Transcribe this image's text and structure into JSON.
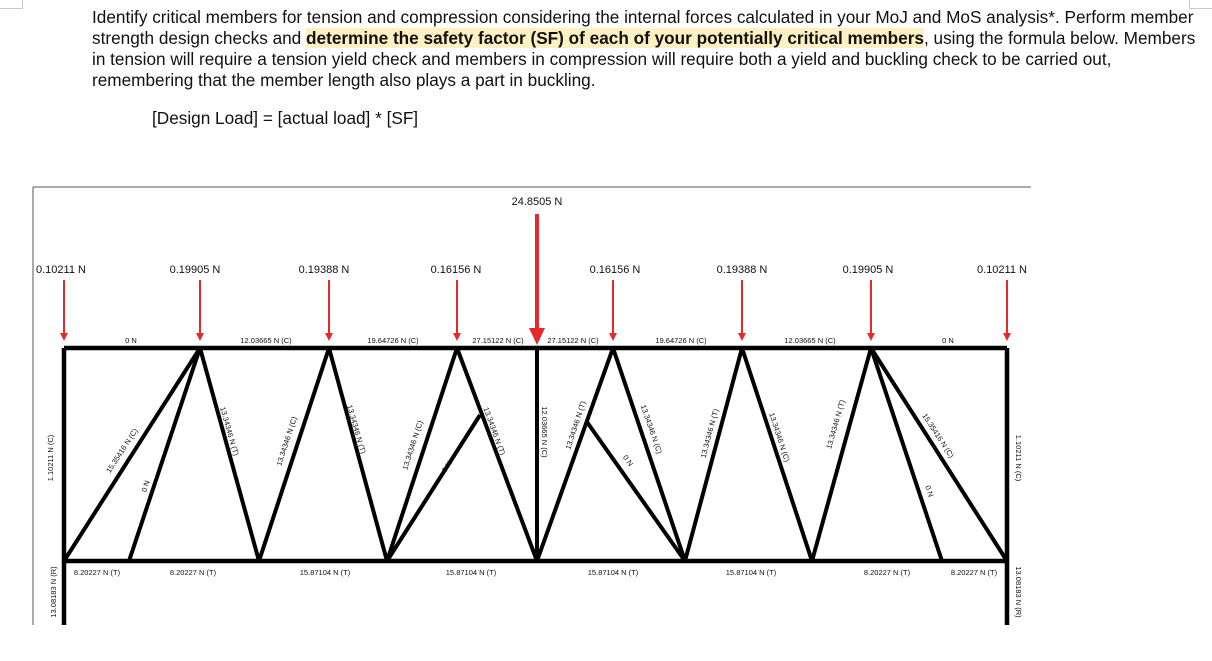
{
  "instructions": {
    "part1": "Identify critical members for tension and compression considering the internal forces calculated in your MoJ and MoS analysis*. Perform member strength design checks and ",
    "highlight": "determine the safety factor (SF) of each of your potentially critical members",
    "part2": ", using the formula below. Members in tension will require a tension yield check and members in compression will require both a yield and buckling check to be carried out, remembering that the member length also plays a part in buckling."
  },
  "formula": "[Design Load] = [actual load] * [SF]",
  "diagram": {
    "center_load": "24.8505 N",
    "node_loads": [
      "0.10211 N",
      "0.19905 N",
      "0.19388 N",
      "0.16156 N",
      "0.16156 N",
      "0.19388 N",
      "0.19905 N",
      "0.10211 N"
    ],
    "top_chord": [
      "0 N",
      "12.03665 N (C)",
      "19.64726 N (C)",
      "27.15122 N (C)",
      "27.15122 N (C)",
      "19.64726 N (C)",
      "12.03665 N (C)",
      "0 N"
    ],
    "bottom_chord": [
      "8.20227 N (T)",
      "8.20227 N (T)",
      "15.87104 N (T)",
      "15.87104 N (T)",
      "15.87104 N (T)",
      "15.87104 N (T)",
      "8.20227 N (T)",
      "8.20227 N (T)"
    ],
    "diagonals": [
      "15.35416 N (C)",
      "0 N",
      "13.34346 N (T)",
      "13.34346 N (C)",
      "13.34346 N (T)",
      "13.34346 N (C)",
      "0 N",
      "13.34346 N (T)",
      "12.03665 N (C)",
      "13.34346 N (T)",
      "0 N",
      "13.34346 N (C)",
      "13.34346 N (T)",
      "13.34346 N (C)",
      "13.34346 N (T)",
      "15.35416 N (C)",
      "0 N"
    ],
    "left_vertical": "1.10211 N (C)",
    "right_vertical": "1.10211 N (C)",
    "left_reaction": "13.08183 N (R)",
    "right_reaction": "13.08183 N (R)"
  }
}
